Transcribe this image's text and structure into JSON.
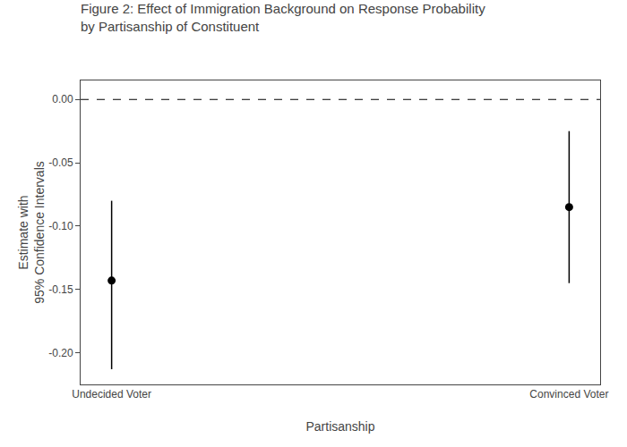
{
  "chart_data": {
    "type": "scatter",
    "title": "Figure 2: Effect of Immigration Background on Response Probability\nby Partisanship of Constituent",
    "x_label": "Partisanship",
    "y_label": "Estimate with\n95% Confidence Intervals",
    "categories": [
      "Undecided Voter",
      "Convinced Voter"
    ],
    "values": [
      -0.143,
      -0.085
    ],
    "ci_lower": [
      -0.213,
      -0.145
    ],
    "ci_upper": [
      -0.08,
      -0.025
    ],
    "hline": 0.0,
    "ylim": [
      -0.225,
      0.015
    ],
    "yticks": [
      {
        "value": 0.0,
        "label": "0.00"
      },
      {
        "value": -0.05,
        "label": "-0.05"
      },
      {
        "value": -0.1,
        "label": "-0.10"
      },
      {
        "value": -0.15,
        "label": "-0.15"
      },
      {
        "value": -0.2,
        "label": "-0.20"
      }
    ],
    "color": "#000000",
    "marker": "circle",
    "grid": false
  }
}
